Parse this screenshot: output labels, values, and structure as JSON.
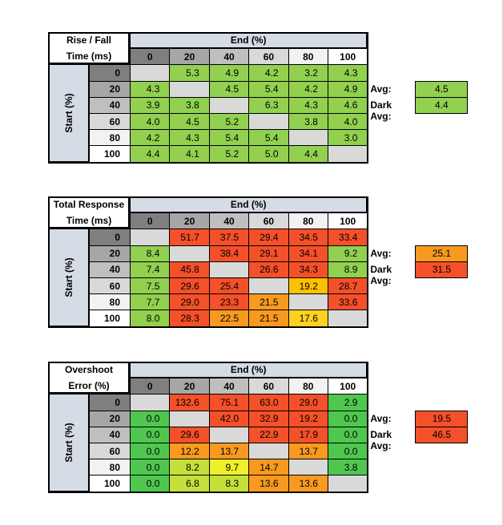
{
  "chart_data": [
    {
      "type": "table",
      "corner_title": [
        "Rise / Fall",
        "Time (ms)"
      ],
      "col_title": "End (%)",
      "row_title": "Start (%)",
      "columns": [
        "0",
        "20",
        "40",
        "60",
        "80",
        "100"
      ],
      "rows": [
        "0",
        "20",
        "40",
        "60",
        "80",
        "100"
      ],
      "values": [
        [
          null,
          "5.3",
          "4.9",
          "4.2",
          "3.2",
          "4.3"
        ],
        [
          "4.3",
          null,
          "4.5",
          "5.4",
          "4.2",
          "4.9"
        ],
        [
          "3.9",
          "3.8",
          null,
          "6.3",
          "4.3",
          "4.6"
        ],
        [
          "4.0",
          "4.5",
          "5.2",
          null,
          "3.8",
          "4.0"
        ],
        [
          "4.2",
          "4.3",
          "5.4",
          "5.4",
          null,
          "3.0"
        ],
        [
          "4.4",
          "4.1",
          "5.2",
          "5.0",
          "4.4",
          null
        ]
      ],
      "colors": [
        [
          "#d9d9d9",
          "#92d050",
          "#92d050",
          "#92d050",
          "#92d050",
          "#92d050"
        ],
        [
          "#92d050",
          "#d9d9d9",
          "#92d050",
          "#92d050",
          "#92d050",
          "#92d050"
        ],
        [
          "#92d050",
          "#92d050",
          "#d9d9d9",
          "#92d050",
          "#92d050",
          "#92d050"
        ],
        [
          "#92d050",
          "#92d050",
          "#92d050",
          "#d9d9d9",
          "#92d050",
          "#92d050"
        ],
        [
          "#92d050",
          "#92d050",
          "#92d050",
          "#92d050",
          "#d9d9d9",
          "#92d050"
        ],
        [
          "#92d050",
          "#92d050",
          "#92d050",
          "#92d050",
          "#92d050",
          "#d9d9d9"
        ]
      ],
      "avg_label": "Avg:",
      "avg_value": "4.5",
      "avg_color": "#92d050",
      "dark_avg_label": "Dark Avg:",
      "dark_avg_value": "4.4",
      "dark_avg_color": "#92d050"
    },
    {
      "type": "table",
      "corner_title": [
        "Total Response",
        "Time (ms)"
      ],
      "col_title": "End (%)",
      "row_title": "Start (%)",
      "columns": [
        "0",
        "20",
        "40",
        "60",
        "80",
        "100"
      ],
      "rows": [
        "0",
        "20",
        "40",
        "60",
        "80",
        "100"
      ],
      "values": [
        [
          null,
          "51.7",
          "37.5",
          "29.4",
          "34.5",
          "33.4"
        ],
        [
          "8.4",
          null,
          "38.4",
          "29.1",
          "34.1",
          "9.2"
        ],
        [
          "7.4",
          "45.8",
          null,
          "26.6",
          "34.3",
          "8.9"
        ],
        [
          "7.5",
          "29.6",
          "25.4",
          null,
          "19.2",
          "28.7"
        ],
        [
          "7.7",
          "29.0",
          "23.3",
          "21.5",
          null,
          "33.6"
        ],
        [
          "8.0",
          "28.3",
          "22.5",
          "21.5",
          "17.6",
          null
        ]
      ],
      "colors": [
        [
          "#d9d9d9",
          "#f4502a",
          "#f4502a",
          "#f4502a",
          "#f4502a",
          "#f4502a"
        ],
        [
          "#92d050",
          "#d9d9d9",
          "#f4502a",
          "#f4502a",
          "#f4502a",
          "#92d050"
        ],
        [
          "#92d050",
          "#f4502a",
          "#d9d9d9",
          "#f4502a",
          "#f4502a",
          "#92d050"
        ],
        [
          "#92d050",
          "#f4502a",
          "#f4502a",
          "#d9d9d9",
          "#ffc000",
          "#f4502a"
        ],
        [
          "#92d050",
          "#f4502a",
          "#f4502a",
          "#f79a1f",
          "#d9d9d9",
          "#f4502a"
        ],
        [
          "#92d050",
          "#f4502a",
          "#f79a1f",
          "#f79a1f",
          "#ffd21f",
          "#d9d9d9"
        ]
      ],
      "avg_label": "Avg:",
      "avg_value": "25.1",
      "avg_color": "#f79a1f",
      "dark_avg_label": "Dark Avg:",
      "dark_avg_value": "31.5",
      "dark_avg_color": "#f4502a"
    },
    {
      "type": "table",
      "corner_title": [
        "Overshoot",
        "Error (%)"
      ],
      "col_title": "End (%)",
      "row_title": "Start (%)",
      "columns": [
        "0",
        "20",
        "40",
        "60",
        "80",
        "100"
      ],
      "rows": [
        "0",
        "20",
        "40",
        "60",
        "80",
        "100"
      ],
      "values": [
        [
          null,
          "132.6",
          "75.1",
          "63.0",
          "29.0",
          "2.9"
        ],
        [
          "0.0",
          null,
          "42.0",
          "32.9",
          "19.2",
          "0.0"
        ],
        [
          "0.0",
          "29.6",
          null,
          "22.9",
          "17.9",
          "0.0"
        ],
        [
          "0.0",
          "12.2",
          "13.7",
          null,
          "13.7",
          "0.0"
        ],
        [
          "0.0",
          "8.2",
          "9.7",
          "14.7",
          null,
          "3.8"
        ],
        [
          "0.0",
          "6.8",
          "8.3",
          "13.6",
          "13.6",
          null
        ]
      ],
      "colors": [
        [
          "#d9d9d9",
          "#f4502a",
          "#f4502a",
          "#f4502a",
          "#f4502a",
          "#4fc74f"
        ],
        [
          "#4fc74f",
          "#d9d9d9",
          "#f4502a",
          "#f4502a",
          "#f4502a",
          "#4fc74f"
        ],
        [
          "#4fc74f",
          "#f4502a",
          "#d9d9d9",
          "#f4502a",
          "#f4502a",
          "#4fc74f"
        ],
        [
          "#4fc74f",
          "#f79a1f",
          "#f79a1f",
          "#d9d9d9",
          "#f79a1f",
          "#4fc74f"
        ],
        [
          "#4fc74f",
          "#c5e03a",
          "#eef02a",
          "#f79a1f",
          "#d9d9d9",
          "#4fc74f"
        ],
        [
          "#4fc74f",
          "#c5e03a",
          "#c5e03a",
          "#f79a1f",
          "#f79a1f",
          "#d9d9d9"
        ]
      ],
      "avg_label": "Avg:",
      "avg_value": "19.5",
      "avg_color": "#f4502a",
      "dark_avg_label": "Dark Avg:",
      "dark_avg_value": "46.5",
      "dark_avg_color": "#f4502a"
    }
  ],
  "header_colors": {
    "col_header_bg": [
      "#7f7f7f",
      "#a6a6a6",
      "#bfbfbf",
      "#d9d9d9",
      "#f2f2f2",
      "#ffffff"
    ],
    "row_header_bg": [
      "#7f7f7f",
      "#a6a6a6",
      "#bfbfbf",
      "#d9d9d9",
      "#f2f2f2",
      "#ffffff"
    ],
    "title_bg": "#d6dce5"
  }
}
